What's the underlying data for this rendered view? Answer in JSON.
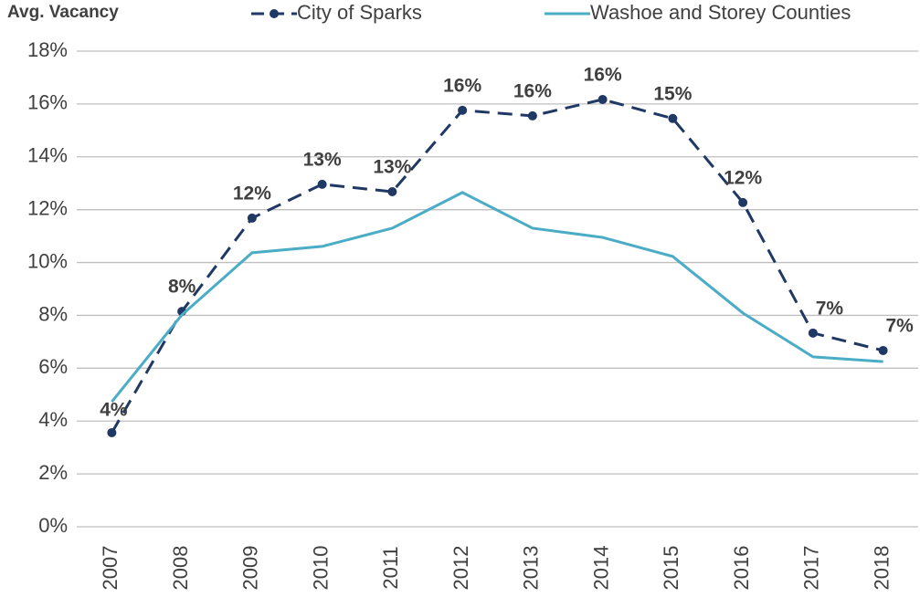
{
  "chart_data": {
    "type": "line",
    "title": "Avg. Vacancy",
    "categories": [
      "2007",
      "2008",
      "2009",
      "2010",
      "2011",
      "2012",
      "2013",
      "2014",
      "2015",
      "2016",
      "2017",
      "2018"
    ],
    "series": [
      {
        "name": "City of Sparks",
        "color": "#203864",
        "dashed": true,
        "markers": true,
        "values": [
          3.56,
          8.15,
          11.68,
          12.96,
          12.68,
          15.76,
          15.55,
          16.17,
          15.45,
          12.27,
          7.33,
          6.67
        ],
        "value_labels": [
          "4%",
          "8%",
          "12%",
          "13%",
          "13%",
          "16%",
          "16%",
          "16%",
          "15%",
          "12%",
          "7%",
          "7%"
        ]
      },
      {
        "name": "Washoe and Storey Counties",
        "color": "#4bacc6",
        "dashed": false,
        "markers": false,
        "values": [
          4.73,
          8.02,
          10.37,
          10.61,
          11.3,
          12.65,
          11.3,
          10.95,
          10.23,
          8.09,
          6.43,
          6.25
        ]
      }
    ],
    "ylim": [
      0,
      18
    ],
    "yticks": [
      {
        "value": 0,
        "label": "0%"
      },
      {
        "value": 2,
        "label": "2%"
      },
      {
        "value": 4,
        "label": "4%"
      },
      {
        "value": 6,
        "label": "6%"
      },
      {
        "value": 8,
        "label": "8%"
      },
      {
        "value": 10,
        "label": "10%"
      },
      {
        "value": 12,
        "label": "12%"
      },
      {
        "value": 14,
        "label": "14%"
      },
      {
        "value": 16,
        "label": "16%"
      },
      {
        "value": 18,
        "label": "18%"
      }
    ],
    "grid": true
  }
}
